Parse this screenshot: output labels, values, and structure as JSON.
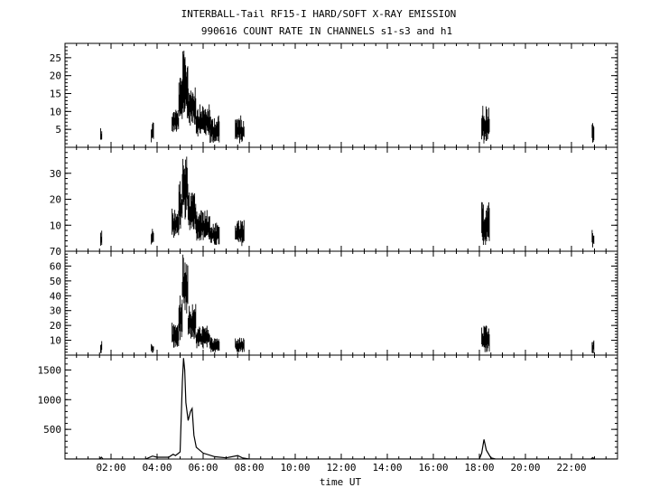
{
  "header": {
    "title_line1": "INTERBALL-Tail RF15-I HARD/SOFT X-RAY EMISSION",
    "title_line2": "990616  COUNT RATE IN CHANNELS s1-s3 and h1"
  },
  "chart_data": {
    "type": "line",
    "title": "INTERBALL-Tail RF15-I HARD/SOFT X-RAY EMISSION",
    "subtitle": "990616  COUNT RATE IN CHANNELS s1-s3 and h1",
    "xlabel": "time UT",
    "x_unit": "hours UT",
    "xlim": [
      0,
      24
    ],
    "x_ticks": [
      2,
      4,
      6,
      8,
      10,
      12,
      14,
      16,
      18,
      20,
      22
    ],
    "x_tick_labels": [
      "02:00",
      "04:00",
      "06:00",
      "08:00",
      "10:00",
      "12:00",
      "14:00",
      "16:00",
      "18:00",
      "20:00",
      "22:00"
    ],
    "grid": false,
    "panels": [
      {
        "channel": "s1",
        "ylim": [
          0,
          29
        ],
        "y_ticks": [
          5,
          10,
          15,
          20,
          25
        ],
        "y_tick_labels": [
          "5",
          "10",
          "15",
          "20",
          "25"
        ],
        "bursts": [
          {
            "start": 1.55,
            "end": 1.62,
            "low": 1,
            "high": 6
          },
          {
            "start": 3.75,
            "end": 3.85,
            "low": 1,
            "high": 7.5
          },
          {
            "start": 4.65,
            "end": 4.95,
            "low": 4,
            "high": 11
          },
          {
            "start": 4.95,
            "end": 5.1,
            "low": 6,
            "high": 20
          },
          {
            "start": 5.1,
            "end": 5.35,
            "low": 8,
            "high": 27
          },
          {
            "start": 5.35,
            "end": 5.7,
            "low": 6,
            "high": 18
          },
          {
            "start": 5.7,
            "end": 6.3,
            "low": 3,
            "high": 12
          },
          {
            "start": 6.3,
            "end": 6.7,
            "low": 1,
            "high": 9
          },
          {
            "start": 7.4,
            "end": 7.8,
            "low": 1,
            "high": 9
          },
          {
            "start": 18.1,
            "end": 18.45,
            "low": 1,
            "high": 12
          },
          {
            "start": 22.9,
            "end": 22.98,
            "low": 1,
            "high": 7
          }
        ]
      },
      {
        "channel": "s2",
        "ylim": [
          0,
          40
        ],
        "y_ticks": [
          10,
          20,
          30
        ],
        "y_tick_labels": [
          "10",
          "20",
          "30"
        ],
        "bursts": [
          {
            "start": 1.55,
            "end": 1.62,
            "low": 2,
            "high": 8
          },
          {
            "start": 3.75,
            "end": 3.85,
            "low": 2,
            "high": 9
          },
          {
            "start": 4.65,
            "end": 4.95,
            "low": 5,
            "high": 17
          },
          {
            "start": 4.95,
            "end": 5.1,
            "low": 8,
            "high": 27
          },
          {
            "start": 5.1,
            "end": 5.35,
            "low": 12,
            "high": 37
          },
          {
            "start": 5.35,
            "end": 5.7,
            "low": 8,
            "high": 23
          },
          {
            "start": 5.7,
            "end": 6.3,
            "low": 4,
            "high": 16
          },
          {
            "start": 6.3,
            "end": 6.7,
            "low": 2,
            "high": 11
          },
          {
            "start": 7.4,
            "end": 7.8,
            "low": 2,
            "high": 12
          },
          {
            "start": 18.1,
            "end": 18.45,
            "low": 2,
            "high": 19
          },
          {
            "start": 22.9,
            "end": 22.98,
            "low": 1,
            "high": 9
          }
        ]
      },
      {
        "channel": "s3",
        "ylim": [
          0,
          70
        ],
        "y_ticks": [
          10,
          20,
          30,
          40,
          50,
          60,
          70
        ],
        "y_tick_labels": [
          "10",
          "20",
          "30",
          "40",
          "50",
          "60",
          "70"
        ],
        "bursts": [
          {
            "start": 1.55,
            "end": 1.62,
            "low": 1,
            "high": 10
          },
          {
            "start": 3.75,
            "end": 3.85,
            "low": 1,
            "high": 9
          },
          {
            "start": 4.65,
            "end": 4.95,
            "low": 4,
            "high": 22
          },
          {
            "start": 4.95,
            "end": 5.1,
            "low": 10,
            "high": 45
          },
          {
            "start": 5.1,
            "end": 5.35,
            "low": 25,
            "high": 68
          },
          {
            "start": 5.35,
            "end": 5.7,
            "low": 10,
            "high": 35
          },
          {
            "start": 5.7,
            "end": 6.3,
            "low": 4,
            "high": 20
          },
          {
            "start": 6.3,
            "end": 6.7,
            "low": 2,
            "high": 12
          },
          {
            "start": 7.4,
            "end": 7.8,
            "low": 2,
            "high": 12
          },
          {
            "start": 18.1,
            "end": 18.45,
            "low": 2,
            "high": 20
          },
          {
            "start": 22.9,
            "end": 22.98,
            "low": 1,
            "high": 10
          }
        ]
      },
      {
        "channel": "h1",
        "ylim": [
          0,
          1750
        ],
        "y_ticks": [
          500,
          1000,
          1500
        ],
        "y_tick_labels": [
          "500",
          "1000",
          "1500"
        ],
        "line": [
          [
            0.0,
            0
          ],
          [
            1.5,
            0
          ],
          [
            1.58,
            30
          ],
          [
            1.65,
            0
          ],
          [
            3.5,
            0
          ],
          [
            3.8,
            50
          ],
          [
            4.0,
            30
          ],
          [
            4.5,
            30
          ],
          [
            4.7,
            80
          ],
          [
            4.8,
            60
          ],
          [
            4.9,
            90
          ],
          [
            5.0,
            120
          ],
          [
            5.1,
            1300
          ],
          [
            5.15,
            1700
          ],
          [
            5.2,
            1500
          ],
          [
            5.25,
            950
          ],
          [
            5.35,
            650
          ],
          [
            5.45,
            800
          ],
          [
            5.52,
            850
          ],
          [
            5.6,
            400
          ],
          [
            5.7,
            200
          ],
          [
            6.0,
            100
          ],
          [
            6.5,
            40
          ],
          [
            7.0,
            20
          ],
          [
            7.5,
            60
          ],
          [
            7.7,
            20
          ],
          [
            8.0,
            0
          ],
          [
            18.0,
            0
          ],
          [
            18.1,
            100
          ],
          [
            18.2,
            330
          ],
          [
            18.3,
            150
          ],
          [
            18.5,
            20
          ],
          [
            18.7,
            0
          ],
          [
            22.85,
            0
          ],
          [
            22.92,
            25
          ],
          [
            23.0,
            0
          ],
          [
            24.0,
            0
          ]
        ]
      }
    ]
  }
}
